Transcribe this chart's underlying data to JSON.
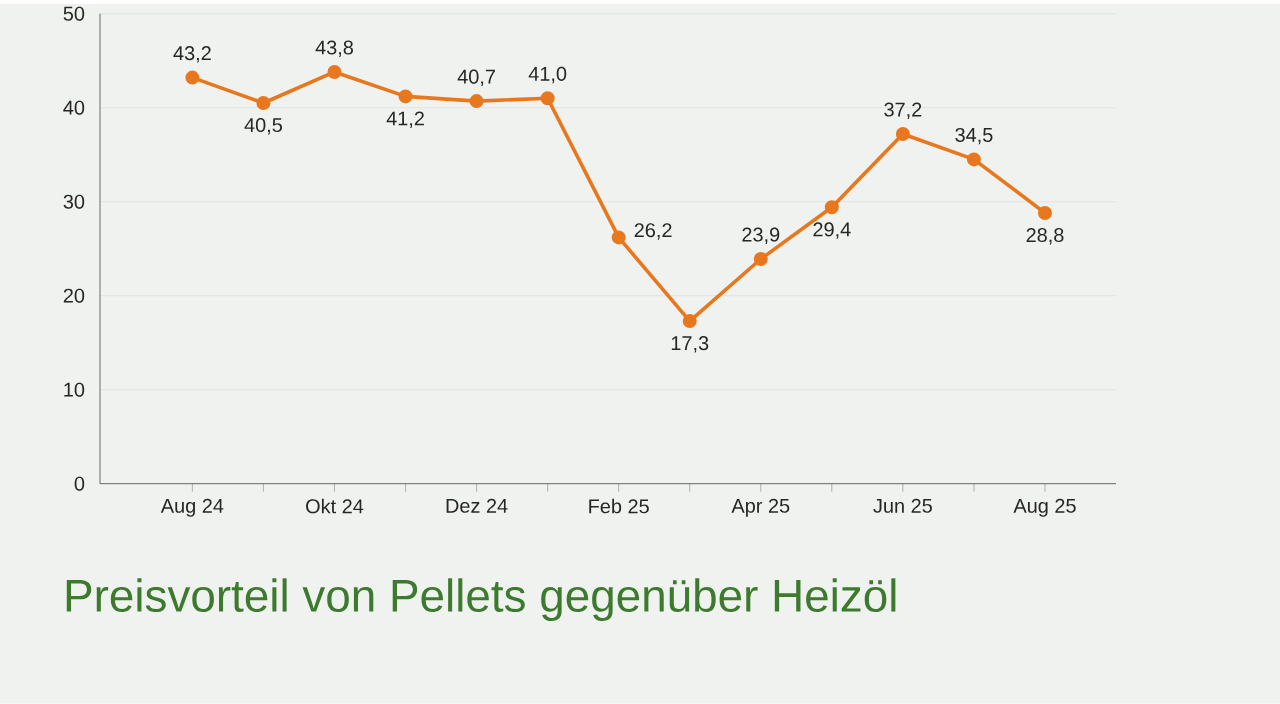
{
  "chart_data": {
    "type": "line",
    "title": "Preisvorteil von Pellets gegenüber Heizöl",
    "categories": [
      "Aug 24",
      null,
      "Okt 24",
      null,
      "Dez 24",
      null,
      "Feb 25",
      null,
      "Apr 25",
      null,
      "Jun 25",
      null,
      "Aug 25"
    ],
    "series": [
      {
        "color": "#e8771e",
        "values": [
          43.2,
          40.5,
          43.8,
          41.2,
          40.7,
          41.0,
          26.2,
          17.3,
          23.9,
          29.4,
          37.2,
          34.5,
          28.8
        ],
        "value_labels": [
          "43,2",
          "40,5",
          "43,8",
          "41,2",
          "40,7",
          "41,0",
          "26,2",
          "17,3",
          "23,9",
          "29,4",
          "37,2",
          "34,5",
          "28,8"
        ]
      }
    ],
    "ylim": [
      0,
      50
    ],
    "yticks": [
      0,
      10,
      20,
      30,
      40,
      50
    ],
    "grid": "y",
    "marker": "circle",
    "line_style": "solid"
  }
}
